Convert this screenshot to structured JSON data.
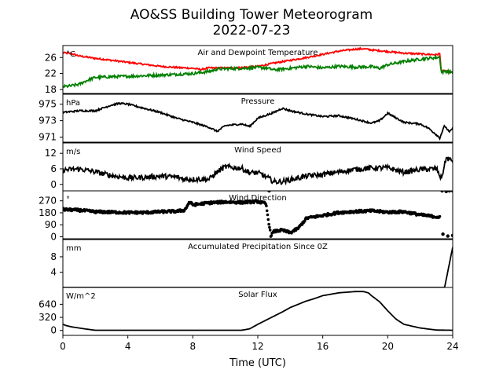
{
  "figure": {
    "title_line1": "AO&SS Building Tower Meteorogram",
    "title_line2": "2022-07-23",
    "xlabel": "Time (UTC)"
  },
  "chart_data": [
    {
      "type": "line",
      "title": "Air and Dewpoint Temperature",
      "unit": "°C",
      "ylim": [
        17,
        29
      ],
      "yticks": [
        18,
        22,
        26
      ],
      "xlim": [
        0,
        24
      ],
      "xticks": [
        0,
        4,
        8,
        12,
        16,
        20,
        24
      ],
      "series": [
        {
          "color": "#ff0000",
          "x": [
            0,
            0.5,
            1,
            2,
            3,
            4,
            5,
            6,
            7,
            8,
            8.5,
            9,
            10,
            11,
            12,
            12.5,
            13,
            14,
            15,
            16,
            17,
            18,
            18.5,
            19,
            20,
            21,
            22,
            23,
            23.2,
            23.3,
            23.5,
            24
          ],
          "y": [
            27.2,
            27.0,
            26.4,
            25.8,
            25.3,
            24.8,
            24.3,
            23.8,
            23.5,
            23.3,
            23.0,
            23.4,
            23.4,
            23.5,
            23.8,
            24.2,
            24.6,
            25.3,
            26.0,
            26.8,
            27.6,
            28.1,
            28.2,
            27.9,
            27.5,
            27.1,
            26.9,
            26.7,
            27.0,
            22.5,
            22.7,
            22.3
          ],
          "noise": 0.2
        },
        {
          "color": "#008000",
          "x": [
            0,
            0.5,
            1,
            1.5,
            2,
            3,
            4,
            6,
            8,
            9,
            9.5,
            10,
            11,
            12,
            12.5,
            13,
            14,
            15,
            16,
            17,
            18,
            19,
            19.5,
            20,
            21,
            22,
            23,
            23.2,
            23.3,
            23.5,
            24
          ],
          "y": [
            18.7,
            18.9,
            19.3,
            20.3,
            21.0,
            21.2,
            21.3,
            21.6,
            22.0,
            22.5,
            23.1,
            23.2,
            23.3,
            23.5,
            23.4,
            22.9,
            23.3,
            23.8,
            23.4,
            23.8,
            23.6,
            23.7,
            23.3,
            24.2,
            25.0,
            25.6,
            26.0,
            26.1,
            22.2,
            22.6,
            22.3
          ],
          "noise": 0.35
        }
      ]
    },
    {
      "type": "line",
      "title": "Pressure",
      "unit": "hPa",
      "ylim": [
        970.4,
        976.2
      ],
      "yticks": [
        971,
        973,
        975
      ],
      "series": [
        {
          "color": "#000000",
          "x": [
            0,
            1,
            2,
            3,
            3.5,
            4,
            5,
            6,
            7,
            8,
            9,
            9.5,
            10,
            11,
            11.5,
            12,
            13,
            13.5,
            14,
            15,
            16,
            17,
            18,
            19,
            19.5,
            20,
            21,
            22,
            22.5,
            23,
            23.2,
            23.5,
            23.8,
            24
          ],
          "y": [
            974.0,
            974.2,
            974.2,
            974.9,
            975.1,
            975.0,
            974.5,
            974.0,
            973.3,
            972.8,
            972.2,
            971.7,
            972.4,
            972.6,
            972.3,
            973.3,
            974.0,
            974.5,
            974.2,
            973.8,
            973.5,
            973.6,
            973.2,
            972.7,
            973.0,
            973.9,
            972.8,
            972.6,
            972.1,
            971.3,
            970.9,
            972.4,
            971.6,
            972.1
          ],
          "noise": 0.1
        }
      ]
    },
    {
      "type": "line",
      "title": "Wind Speed",
      "unit": "m/s",
      "ylim": [
        -2.5,
        16
      ],
      "yticks": [
        0,
        6,
        12
      ],
      "series": [
        {
          "color": "#000000",
          "x": [
            0,
            1,
            2,
            3,
            4,
            5,
            6,
            7,
            7.5,
            8,
            9,
            9.5,
            10,
            11,
            11.5,
            12,
            12.5,
            13,
            13.5,
            14,
            15,
            16,
            17,
            18,
            19,
            20,
            21,
            22,
            23,
            23.3,
            23.6,
            24
          ],
          "y": [
            5.5,
            6.0,
            4.8,
            3.4,
            2.5,
            2.7,
            3.2,
            2.8,
            2.0,
            2.0,
            2.0,
            4.8,
            6.8,
            6.2,
            4.5,
            4.5,
            3.0,
            1.0,
            1.1,
            1.8,
            3.2,
            3.8,
            4.8,
            5.8,
            6.3,
            6.4,
            4.7,
            5.8,
            6.0,
            2.2,
            10.2,
            9.0
          ],
          "noise": 1.0
        }
      ]
    },
    {
      "type": "scatter",
      "title": "Wind Direction",
      "unit": "°",
      "ylim": [
        -15,
        345
      ],
      "yticks": [
        0,
        90,
        180,
        270
      ],
      "series": [
        {
          "color": "#000000",
          "x": [
            0,
            1,
            2,
            3,
            4,
            5,
            6,
            7,
            7.5,
            7.8,
            8,
            9,
            10,
            11,
            12,
            12.5,
            12.8,
            13,
            13.5,
            14,
            14.5,
            15,
            15.5,
            16,
            17,
            18,
            19,
            20,
            21,
            22,
            23,
            23.2
          ],
          "y": [
            205,
            200,
            188,
            185,
            182,
            182,
            188,
            192,
            200,
            262,
            240,
            255,
            262,
            258,
            265,
            248,
            10,
            40,
            50,
            30,
            65,
            140,
            150,
            160,
            182,
            190,
            195,
            185,
            188,
            165,
            150,
            145
          ],
          "noise": 9
        },
        {
          "color": "#000000",
          "x": [
            12.7,
            23.35,
            23.6,
            23.8,
            24
          ],
          "y": [
            345,
            345,
            340,
            345,
            345
          ],
          "noise": 0
        },
        {
          "color": "#000000",
          "x": [
            23.4,
            23.7,
            24
          ],
          "y": [
            20,
            5,
            10
          ],
          "noise": 5
        }
      ]
    },
    {
      "type": "line",
      "title": "Accumulated Precipitation Since 0Z",
      "unit": "mm",
      "ylim": [
        0,
        12.5
      ],
      "yticks": [
        4,
        8
      ],
      "series": [
        {
          "color": "#000000",
          "x": [
            0,
            23.5,
            24
          ],
          "y": [
            0,
            0,
            10.5
          ],
          "noise": 0
        }
      ]
    },
    {
      "type": "line",
      "title": "Solar Flux",
      "unit": "W/m^2",
      "ylim": [
        -120,
        1050
      ],
      "yticks": [
        0,
        320,
        640
      ],
      "series": [
        {
          "color": "#000000",
          "x": [
            0,
            0.2,
            0.5,
            1,
            1.5,
            2,
            4,
            6,
            8,
            10,
            11,
            11.5,
            12,
            13,
            13.5,
            14,
            14.5,
            14.8,
            15,
            15.5,
            16,
            17,
            18,
            18.5,
            18.8,
            19,
            19.5,
            20,
            20.5,
            21,
            22,
            23,
            24
          ],
          "y": [
            150,
            120,
            90,
            60,
            30,
            5,
            5,
            5,
            5,
            5,
            5,
            40,
            150,
            350,
            450,
            560,
            640,
            690,
            720,
            780,
            850,
            920,
            950,
            950,
            920,
            850,
            700,
            480,
            280,
            150,
            60,
            10,
            5
          ],
          "noise": 0
        }
      ]
    }
  ]
}
